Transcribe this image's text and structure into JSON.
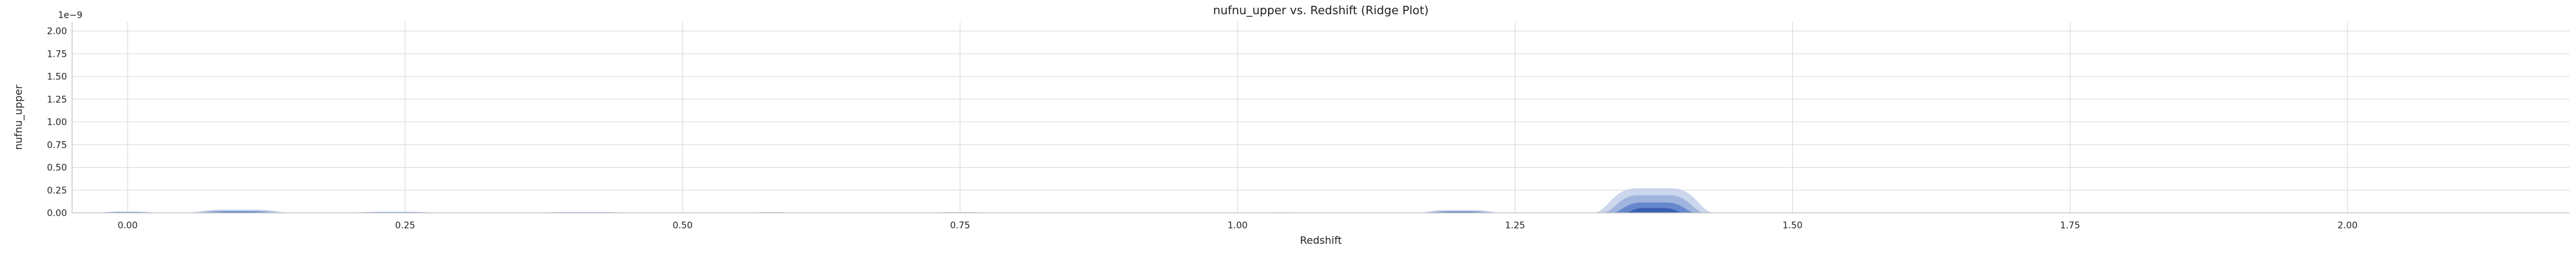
{
  "chart_data": {
    "type": "area",
    "title": "nufnu_upper vs. Redshift (Ridge Plot)",
    "xlabel": "Redshift",
    "ylabel": "nufnu_upper",
    "y_offset_label": "1e−9",
    "xlim": [
      -0.05,
      2.2
    ],
    "ylim": [
      0,
      2.1
    ],
    "x_ticks": [
      0.0,
      0.25,
      0.5,
      0.75,
      1.0,
      1.25,
      1.5,
      1.75,
      2.0
    ],
    "x_tick_labels": [
      "0.00",
      "0.25",
      "0.50",
      "0.75",
      "1.00",
      "1.25",
      "1.50",
      "1.75",
      "2.00"
    ],
    "y_ticks": [
      0.0,
      0.25,
      0.5,
      0.75,
      1.0,
      1.25,
      1.5,
      1.75,
      2.0
    ],
    "y_tick_labels": [
      "0.00",
      "0.25",
      "0.50",
      "0.75",
      "1.00",
      "1.25",
      "1.50",
      "1.75",
      "2.00"
    ],
    "grid": true,
    "density_regions": [
      {
        "x_center": 0.0,
        "x_halfwidth": 0.03,
        "y_peak": 0.015
      },
      {
        "x_center": 0.1,
        "x_halfwidth": 0.05,
        "y_peak": 0.035
      },
      {
        "x_center": 0.24,
        "x_halfwidth": 0.045,
        "y_peak": 0.012
      },
      {
        "x_center": 0.41,
        "x_halfwidth": 0.05,
        "y_peak": 0.01
      },
      {
        "x_center": 0.58,
        "x_halfwidth": 0.02,
        "y_peak": 0.008
      },
      {
        "x_center": 0.75,
        "x_halfwidth": 0.03,
        "y_peak": 0.008
      },
      {
        "x_center": 1.04,
        "x_halfwidth": 0.02,
        "y_peak": 0.005
      },
      {
        "x_center": 1.2,
        "x_halfwidth": 0.04,
        "y_peak": 0.03
      },
      {
        "x_center": 1.375,
        "x_halfwidth": 0.055,
        "y_peak": 0.27
      }
    ],
    "colors": {
      "density_outer": "#c3cfe9",
      "density_mid": "#8da6d9",
      "density_inner": "#4e74c4",
      "density_core": "#2a52a8",
      "grid": "#d9d9d9",
      "axis": "#bfbfbf"
    }
  }
}
